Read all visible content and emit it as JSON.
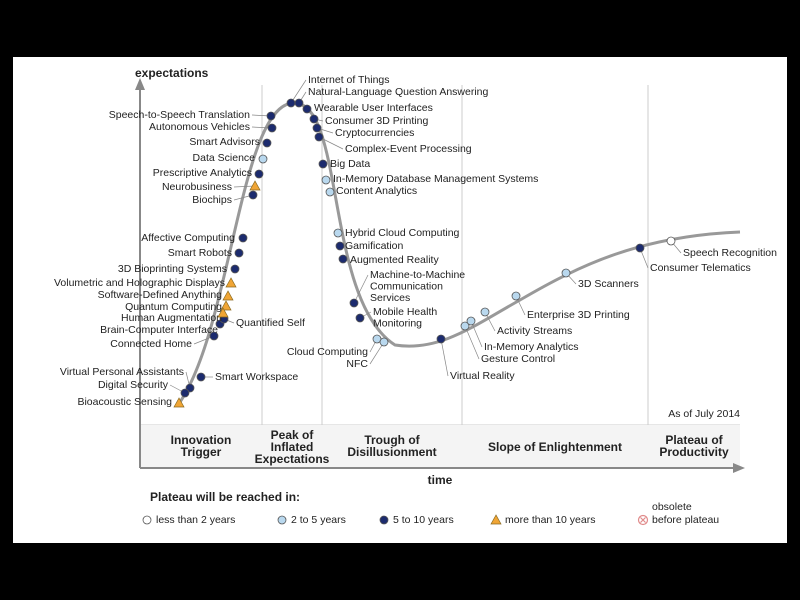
{
  "axis": {
    "y_label": "expectations",
    "x_label": "time"
  },
  "note": "As of July 2014",
  "phases": [
    {
      "lines": [
        "Innovation",
        "Trigger"
      ]
    },
    {
      "lines": [
        "Peak of",
        "Inflated",
        "Expectations"
      ]
    },
    {
      "lines": [
        "Trough of",
        "Disillusionment"
      ]
    },
    {
      "lines": [
        "Slope of Enlightenment"
      ]
    },
    {
      "lines": [
        "Plateau of",
        "Productivity"
      ]
    }
  ],
  "legend": {
    "title": "Plateau will be reached in:",
    "items": [
      {
        "lines": [
          "less than 2 years"
        ],
        "color": "#ffffff",
        "shape": "circle",
        "points": [
          {
            "lines": [
              "Speech Recognition"
            ]
          }
        ]
      },
      {
        "lines": [
          "2 to 5 years"
        ],
        "color": "#b9d8ee",
        "shape": "circle",
        "points": [
          {
            "lines": [
              "Data Science"
            ]
          },
          {
            "lines": [
              "In-Memory Database Management Systems"
            ]
          },
          {
            "lines": [
              "Content Analytics"
            ]
          },
          {
            "lines": [
              "Hybrid Cloud Computing"
            ]
          },
          {
            "lines": [
              "Cloud Computing"
            ]
          },
          {
            "lines": [
              "NFC"
            ]
          },
          {
            "lines": [
              "Gesture Control"
            ]
          },
          {
            "lines": [
              "In-Memory Analytics"
            ]
          },
          {
            "lines": [
              "Activity Streams"
            ]
          },
          {
            "lines": [
              "Enterprise 3D Printing"
            ]
          },
          {
            "lines": [
              "3D Scanners"
            ]
          }
        ]
      },
      {
        "lines": [
          "5 to 10 years"
        ],
        "color": "#1c2b6e",
        "shape": "circle",
        "points": [
          {
            "lines": [
              "Speech-to-Speech Translation"
            ]
          },
          {
            "lines": [
              "Autonomous Vehicles"
            ]
          },
          {
            "lines": [
              "Smart Advisors"
            ]
          },
          {
            "lines": [
              "Prescriptive Analytics"
            ]
          },
          {
            "lines": [
              "Biochips"
            ]
          },
          {
            "lines": [
              "Affective  Computing"
            ]
          },
          {
            "lines": [
              "Smart Robots"
            ]
          },
          {
            "lines": [
              "3D Bioprinting Systems"
            ]
          },
          {
            "lines": [
              "Brain-Computer Interface"
            ]
          },
          {
            "lines": [
              "Connected Home"
            ]
          },
          {
            "lines": [
              "Quantified Self"
            ]
          },
          {
            "lines": [
              "Smart Workspace"
            ]
          },
          {
            "lines": [
              "Virtual Personal Assistants"
            ]
          },
          {
            "lines": [
              "Digital Security"
            ]
          },
          {
            "lines": [
              "Internet of Things"
            ]
          },
          {
            "lines": [
              "Natural-Language Question Answering"
            ]
          },
          {
            "lines": [
              "Wearable User Interfaces"
            ]
          },
          {
            "lines": [
              "Consumer 3D Printing"
            ]
          },
          {
            "lines": [
              "Cryptocurrencies"
            ]
          },
          {
            "lines": [
              "Complex-Event Processing"
            ]
          },
          {
            "lines": [
              "Big Data"
            ]
          },
          {
            "lines": [
              "Gamification"
            ]
          },
          {
            "lines": [
              "Augmented Reality"
            ]
          },
          {
            "lines": [
              "Machine-to-Machine",
              "Communication",
              "Services"
            ]
          },
          {
            "lines": [
              "Mobile Health",
              "Monitoring"
            ]
          },
          {
            "lines": [
              "Virtual Reality"
            ]
          },
          {
            "lines": [
              "Consumer Telematics"
            ]
          }
        ]
      },
      {
        "lines": [
          "more than 10 years"
        ],
        "color": "#f0a535",
        "shape": "triangle",
        "points": [
          {
            "lines": [
              "Neurobusiness"
            ]
          },
          {
            "lines": [
              "Volumetric and Holographic Displays"
            ]
          },
          {
            "lines": [
              "Software-Defined Anything"
            ]
          },
          {
            "lines": [
              "Quantum Computing"
            ]
          },
          {
            "lines": [
              "Human Augmentation"
            ]
          },
          {
            "lines": [
              "Bioacoustic Sensing"
            ]
          }
        ]
      },
      {
        "lines": [
          "obsolete",
          "before plateau"
        ],
        "color": "#e08a8a",
        "shape": "cross-circle",
        "points": []
      }
    ]
  }
}
